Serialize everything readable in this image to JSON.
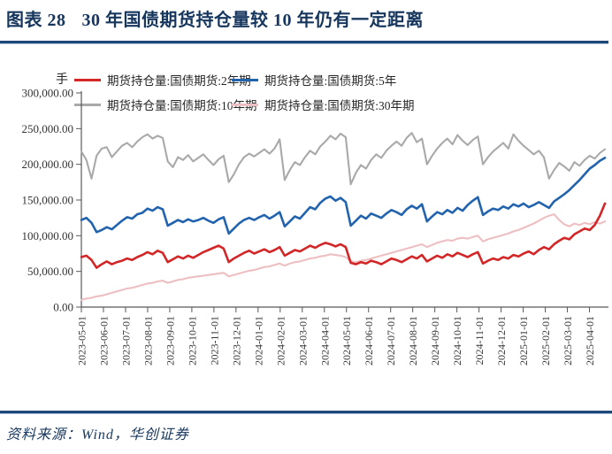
{
  "header": {
    "label": "图表 28",
    "title": "30 年国债期货持仓量较 10 年仍有一定距离"
  },
  "footer": {
    "source": "资料来源：Wind，华创证券"
  },
  "colors": {
    "accent_navy": "#16365D",
    "axis_text": "#333333",
    "axis_line": "#595959"
  },
  "chart_data": {
    "type": "line",
    "title": "30 年国债期货持仓量较 10 年仍有一定距离",
    "unit_label": "手",
    "legend_position": "top",
    "grid": false,
    "ylim": [
      0,
      300000
    ],
    "y_tick_values": [
      0,
      50000,
      100000,
      150000,
      200000,
      250000,
      300000
    ],
    "y_tick_labels": [
      "0.00",
      "50,000.00",
      "100,000.00",
      "150,000.00",
      "200,000.00",
      "250,000.00",
      "300,000.00"
    ],
    "x_tick_labels": [
      "2023-05-01",
      "2023-06-01",
      "2023-07-01",
      "2023-08-01",
      "2023-09-01",
      "2023-10-01",
      "2023-11-01",
      "2023-12-01",
      "2024-01-01",
      "2024-02-01",
      "2024-03-01",
      "2024-04-01",
      "2024-05-01",
      "2024-06-01",
      "2024-07-01",
      "2024-08-01",
      "2024-09-01",
      "2024-10-01",
      "2024-11-01",
      "2024-12-01",
      "2025-01-01",
      "2025-02-01",
      "2025-03-01",
      "2025-04-01"
    ],
    "series": [
      {
        "name": "期货持仓量:国债期货:2年期",
        "color": "#D22627",
        "values": [
          70000,
          72000,
          66000,
          55000,
          60000,
          64000,
          60000,
          63000,
          65000,
          68000,
          66000,
          70000,
          73000,
          77000,
          74000,
          79000,
          76000,
          63000,
          67000,
          71000,
          68000,
          72000,
          69000,
          73000,
          77000,
          80000,
          83000,
          86000,
          82000,
          63000,
          68000,
          72000,
          76000,
          79000,
          75000,
          78000,
          81000,
          77000,
          80000,
          84000,
          72000,
          76000,
          80000,
          78000,
          82000,
          86000,
          83000,
          87000,
          90000,
          88000,
          85000,
          88000,
          84000,
          62000,
          60000,
          63000,
          61000,
          65000,
          63000,
          60000,
          64000,
          68000,
          66000,
          63000,
          67000,
          71000,
          68000,
          73000,
          64000,
          68000,
          72000,
          69000,
          74000,
          71000,
          76000,
          73000,
          70000,
          74000,
          77000,
          61000,
          65000,
          68000,
          66000,
          70000,
          68000,
          73000,
          71000,
          75000,
          78000,
          74000,
          80000,
          84000,
          81000,
          88000,
          93000,
          97000,
          95000,
          102000,
          106000,
          110000,
          108000,
          115000,
          128000,
          145000
        ]
      },
      {
        "name": "期货持仓量:国债期货:5年",
        "color": "#2263AE",
        "values": [
          122000,
          125000,
          118000,
          105000,
          108000,
          112000,
          109000,
          115000,
          121000,
          126000,
          124000,
          130000,
          132000,
          138000,
          135000,
          140000,
          137000,
          114000,
          118000,
          122000,
          119000,
          123000,
          120000,
          122000,
          125000,
          121000,
          118000,
          123000,
          126000,
          103000,
          110000,
          117000,
          122000,
          125000,
          122000,
          126000,
          129000,
          124000,
          128000,
          133000,
          113000,
          120000,
          127000,
          124000,
          132000,
          140000,
          137000,
          146000,
          152000,
          155000,
          149000,
          153000,
          147000,
          114000,
          121000,
          128000,
          124000,
          131000,
          128000,
          125000,
          131000,
          136000,
          133000,
          129000,
          137000,
          142000,
          138000,
          144000,
          120000,
          127000,
          133000,
          130000,
          136000,
          132000,
          139000,
          135000,
          143000,
          149000,
          154000,
          129000,
          134000,
          138000,
          136000,
          141000,
          138000,
          144000,
          141000,
          145000,
          140000,
          143000,
          147000,
          143000,
          139000,
          148000,
          153000,
          158000,
          164000,
          171000,
          178000,
          186000,
          194000,
          199000,
          205000,
          209000
        ]
      },
      {
        "name": "期货持仓量:国债期货:10年期",
        "color": "#A9A9A9",
        "values": [
          218000,
          206000,
          180000,
          212000,
          222000,
          224000,
          210000,
          218000,
          226000,
          230000,
          224000,
          232000,
          238000,
          242000,
          236000,
          240000,
          237000,
          204000,
          196000,
          210000,
          206000,
          213000,
          204000,
          209000,
          214000,
          206000,
          199000,
          207000,
          212000,
          175000,
          186000,
          200000,
          210000,
          215000,
          211000,
          216000,
          221000,
          215000,
          222000,
          235000,
          178000,
          192000,
          203000,
          199000,
          210000,
          219000,
          214000,
          225000,
          232000,
          240000,
          235000,
          243000,
          238000,
          172000,
          188000,
          199000,
          194000,
          206000,
          214000,
          209000,
          219000,
          226000,
          232000,
          226000,
          237000,
          244000,
          231000,
          236000,
          200000,
          212000,
          222000,
          230000,
          236000,
          228000,
          241000,
          233000,
          227000,
          234000,
          239000,
          200000,
          210000,
          218000,
          224000,
          230000,
          222000,
          242000,
          233000,
          226000,
          220000,
          214000,
          219000,
          210000,
          180000,
          192000,
          202000,
          197000,
          191000,
          203000,
          198000,
          206000,
          212000,
          208000,
          216000,
          221000
        ]
      },
      {
        "name": "期货持仓量:国债期货:30年期",
        "color": "#EDBFC3",
        "values": [
          10000,
          12000,
          13000,
          15000,
          16000,
          18000,
          20000,
          22000,
          24000,
          26000,
          27000,
          29000,
          31000,
          33000,
          34000,
          36000,
          37000,
          34000,
          36000,
          38000,
          39000,
          41000,
          42000,
          43000,
          44000,
          45000,
          46000,
          47000,
          48000,
          43000,
          45000,
          47000,
          49000,
          51000,
          52000,
          54000,
          56000,
          57000,
          59000,
          61000,
          58000,
          61000,
          63000,
          64000,
          66000,
          68000,
          69000,
          71000,
          72000,
          74000,
          73000,
          72000,
          70000,
          64000,
          63000,
          65000,
          66000,
          68000,
          70000,
          72000,
          74000,
          76000,
          78000,
          80000,
          82000,
          84000,
          86000,
          88000,
          84000,
          87000,
          90000,
          92000,
          94000,
          93000,
          96000,
          97000,
          96000,
          98000,
          100000,
          92000,
          95000,
          97000,
          99000,
          101000,
          103000,
          106000,
          108000,
          111000,
          114000,
          117000,
          121000,
          125000,
          128000,
          130000,
          122000,
          116000,
          113000,
          117000,
          115000,
          118000,
          116000,
          119000,
          117000,
          120000
        ]
      }
    ]
  }
}
